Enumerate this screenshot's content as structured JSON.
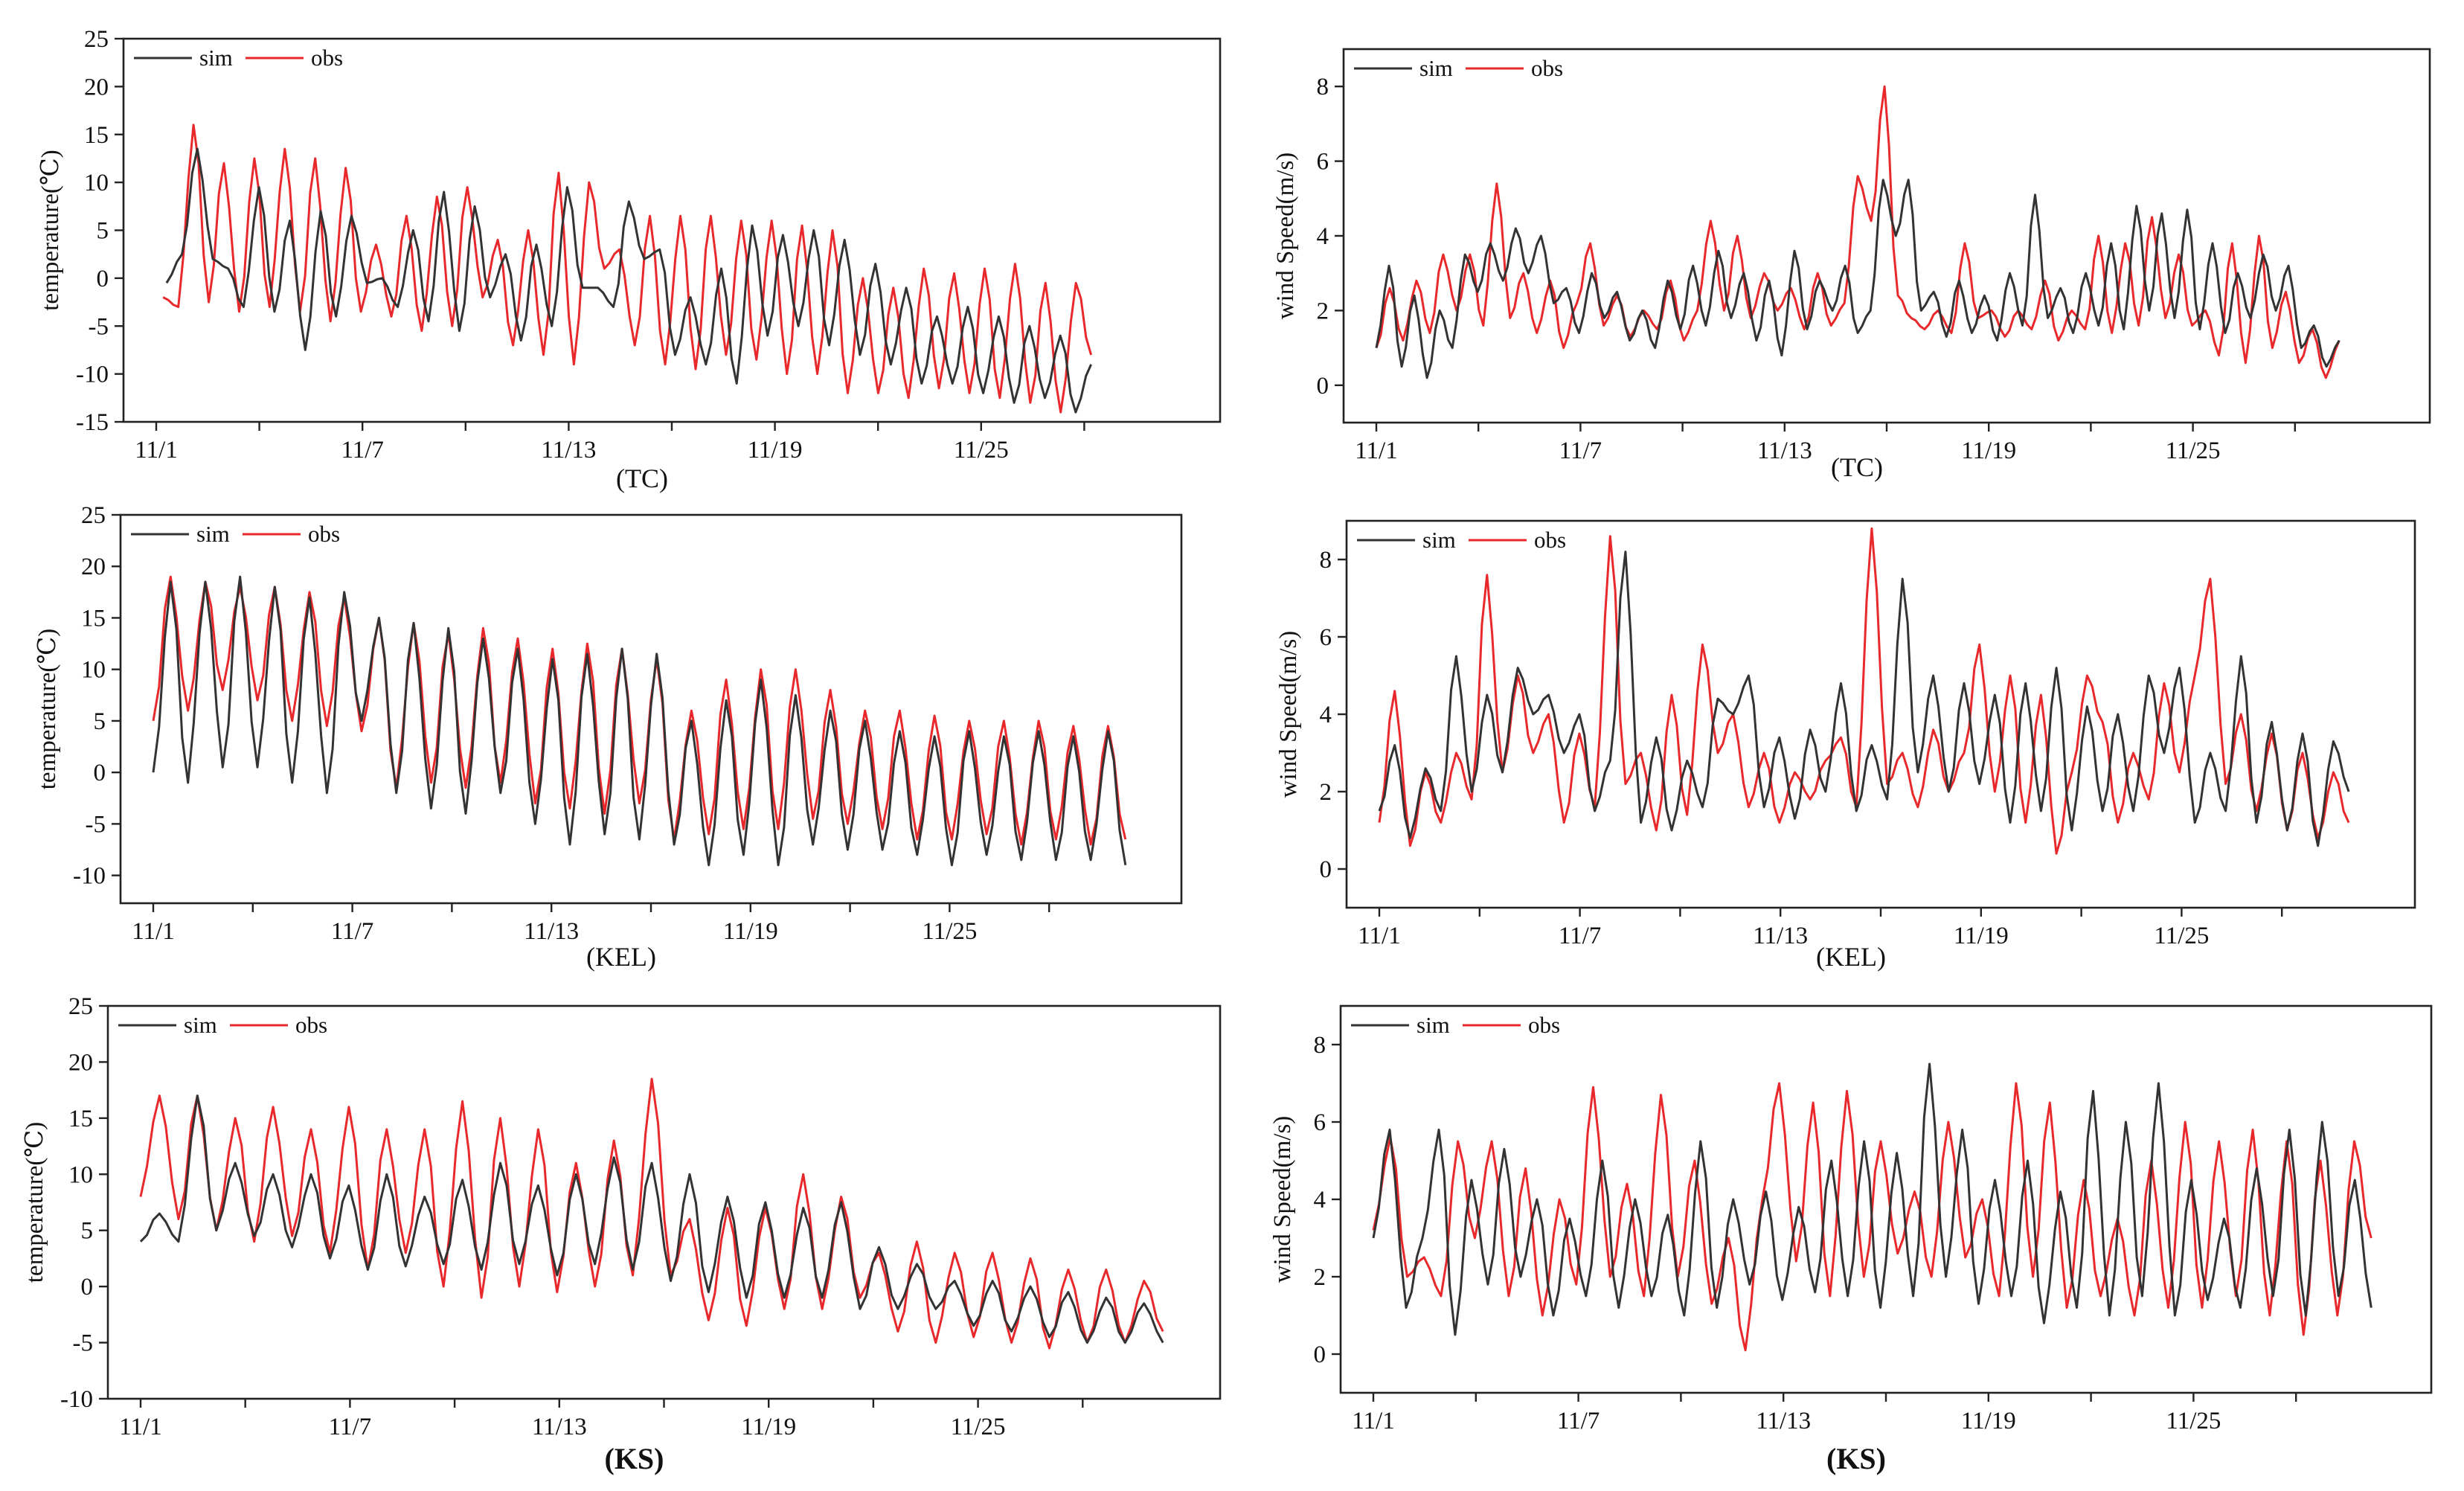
{
  "colors": {
    "sim": "#333333",
    "obs": "#e8282b"
  },
  "legend": {
    "sim": "sim",
    "obs": "obs"
  },
  "chart_data": [
    {
      "type": "line",
      "id": "temp-tc",
      "caption": "(TC)",
      "ylabel": "temperature(℃)",
      "ylim": [
        -15,
        25
      ],
      "yticks": [
        -15,
        -10,
        -5,
        0,
        5,
        10,
        15,
        20,
        25
      ],
      "xlim": [
        0,
        30
      ],
      "xtick_values": [
        0,
        6,
        12,
        18,
        24
      ],
      "xtick_labels": [
        "11/1",
        "11/7",
        "11/13",
        "11/19",
        "11/25"
      ],
      "data_end": 27.2,
      "series": [
        {
          "name": "sim",
          "key": "sim",
          "start": 0.3,
          "keys": [
            -0.5,
            2.5,
            13.5,
            2.0,
            1.0,
            -3.0,
            9.5,
            -3.5,
            6.0,
            -7.5,
            7.0,
            -4.0,
            6.5,
            -0.5,
            0.0,
            -3.0,
            5.0,
            -4.5,
            9.0,
            -5.5,
            7.5,
            -2.0,
            2.5,
            -6.5,
            3.5,
            -5.0,
            9.5,
            -1.0,
            -1.0,
            -3.0,
            8.0,
            2.0,
            3.0,
            -8.0,
            -2.0,
            -9.0,
            1.0,
            -11.0,
            5.5,
            -6.0,
            4.5,
            -5.0,
            5.0,
            -7.0,
            4.0,
            -8.0,
            1.5,
            -9.0,
            -1.0,
            -11.0,
            -4.0,
            -11.0,
            -3.0,
            -12.0,
            -4.0,
            -13.0,
            -5.0,
            -12.5,
            -6.0,
            -14.0,
            -9.0
          ]
        },
        {
          "name": "obs",
          "key": "obs",
          "start": 0.2,
          "keys": [
            -2.0,
            -3.0,
            16.0,
            -2.5,
            12.0,
            -3.5,
            12.5,
            -3.0,
            13.5,
            -3.5,
            12.5,
            -4.5,
            11.5,
            -3.5,
            3.5,
            -4.0,
            6.5,
            -5.5,
            8.5,
            -5.0,
            9.5,
            -2.0,
            4.0,
            -7.0,
            5.0,
            -8.0,
            11.0,
            -9.0,
            10.0,
            1.0,
            3.0,
            -7.0,
            6.5,
            -9.0,
            6.5,
            -9.5,
            6.5,
            -8.0,
            6.0,
            -8.5,
            6.0,
            -10.0,
            5.5,
            -10.0,
            5.0,
            -12.0,
            0.0,
            -12.0,
            -1.0,
            -12.5,
            1.0,
            -11.5,
            0.5,
            -12.0,
            1.0,
            -12.5,
            1.5,
            -13.0,
            -0.5,
            -14.0,
            -0.5,
            -8.0
          ]
        }
      ]
    },
    {
      "type": "line",
      "id": "wind-tc",
      "caption": "(TC)",
      "ylabel": "wind Speed(m/s)",
      "ylim": [
        -1,
        9
      ],
      "yticks": [
        0,
        2,
        4,
        6,
        8
      ],
      "xlim": [
        0,
        30
      ],
      "xtick_values": [
        0,
        6,
        12,
        18,
        24
      ],
      "xtick_labels": [
        "11/1",
        "11/7",
        "11/13",
        "11/19",
        "11/25"
      ],
      "data_end": 28.3,
      "series": [
        {
          "name": "sim",
          "key": "sim",
          "start": 0.0,
          "keys": [
            1.0,
            3.2,
            0.5,
            2.4,
            0.2,
            2.0,
            1.0,
            3.5,
            2.5,
            3.8,
            2.8,
            4.2,
            3.0,
            4.0,
            2.2,
            2.6,
            1.4,
            3.0,
            1.8,
            2.5,
            1.2,
            2.0,
            1.0,
            2.8,
            1.5,
            3.2,
            1.6,
            3.6,
            1.8,
            3.0,
            1.2,
            2.8,
            0.8,
            3.6,
            1.5,
            2.8,
            2.0,
            3.2,
            1.4,
            2.0,
            5.5,
            4.0,
            5.5,
            2.0,
            2.5,
            1.3,
            2.8,
            1.4,
            2.4,
            1.2,
            3.0,
            1.6,
            5.1,
            1.8,
            2.6,
            1.4,
            3.0,
            1.6,
            3.8,
            1.5,
            4.8,
            2.0,
            4.6,
            1.8,
            4.7,
            1.5,
            3.8,
            1.4,
            3.0,
            1.8,
            3.5,
            2.0,
            3.2,
            1.0,
            1.6,
            0.5,
            1.2
          ]
        },
        {
          "name": "obs",
          "key": "obs",
          "start": 0.0,
          "keys": [
            1.0,
            2.6,
            1.2,
            2.8,
            1.4,
            3.5,
            2.0,
            3.5,
            1.6,
            5.4,
            1.8,
            3.0,
            1.4,
            2.8,
            1.0,
            2.2,
            3.8,
            1.6,
            2.4,
            1.3,
            2.0,
            1.5,
            2.8,
            1.2,
            2.0,
            4.4,
            2.0,
            4.0,
            1.8,
            3.0,
            2.0,
            2.6,
            1.5,
            3.0,
            1.6,
            2.2,
            5.6,
            4.4,
            8.0,
            2.4,
            1.8,
            1.5,
            2.0,
            1.4,
            3.8,
            1.8,
            2.0,
            1.3,
            2.0,
            1.5,
            2.8,
            1.2,
            2.0,
            1.5,
            4.0,
            1.4,
            3.8,
            1.6,
            4.5,
            1.8,
            3.5,
            1.6,
            2.0,
            0.8,
            3.8,
            0.6,
            4.0,
            1.0,
            2.5,
            0.6,
            1.5,
            0.2,
            1.2
          ]
        }
      ]
    },
    {
      "type": "line",
      "id": "temp-kel",
      "caption": "(KEL)",
      "ylabel": "temperature(℃)",
      "ylim": [
        -12.7,
        25
      ],
      "yticks": [
        -10,
        -5,
        0,
        5,
        10,
        15,
        20,
        25
      ],
      "xlim": [
        0,
        30
      ],
      "xtick_values": [
        0,
        6,
        12,
        18,
        24
      ],
      "xtick_labels": [
        "11/1",
        "11/7",
        "11/13",
        "11/19",
        "11/25"
      ],
      "data_end": 29.3,
      "series": [
        {
          "name": "sim",
          "key": "sim",
          "start": 0.0,
          "keys": [
            0.0,
            18.5,
            -1.0,
            18.5,
            0.5,
            19.0,
            0.5,
            18.0,
            -1.0,
            17.0,
            -2.0,
            17.5,
            5.0,
            15.0,
            -2.0,
            14.5,
            -3.5,
            14.0,
            -4.0,
            13.0,
            -2.0,
            12.0,
            -5.0,
            11.0,
            -7.0,
            11.5,
            -6.0,
            12.0,
            -6.5,
            11.5,
            -7.0,
            5.0,
            -9.0,
            7.0,
            -8.0,
            9.0,
            -9.0,
            7.5,
            -7.0,
            6.0,
            -7.5,
            5.0,
            -7.5,
            4.0,
            -8.0,
            3.5,
            -9.0,
            4.0,
            -8.0,
            3.5,
            -8.5,
            4.0,
            -8.5,
            3.5,
            -8.5,
            4.0,
            -9.0
          ]
        },
        {
          "name": "obs",
          "key": "obs",
          "start": 0.0,
          "keys": [
            5.0,
            19.0,
            6.0,
            18.5,
            8.0,
            18.0,
            7.0,
            18.0,
            5.0,
            17.5,
            4.5,
            17.0,
            4.0,
            15.0,
            -1.5,
            14.5,
            -1.0,
            13.5,
            -1.5,
            14.0,
            -1.0,
            13.0,
            -3.0,
            12.0,
            -3.5,
            12.5,
            -4.0,
            12.0,
            -3.0,
            11.0,
            -6.5,
            6.0,
            -6.0,
            9.0,
            -5.5,
            10.0,
            -5.5,
            10.0,
            -4.5,
            8.0,
            -5.0,
            6.0,
            -5.5,
            6.0,
            -6.5,
            5.5,
            -6.5,
            5.0,
            -6.0,
            5.0,
            -7.0,
            5.0,
            -6.5,
            4.5,
            -7.0,
            4.5,
            -6.5
          ]
        }
      ]
    },
    {
      "type": "line",
      "id": "wind-kel",
      "caption": "(KEL)",
      "ylabel": "wind Speed(m/s)",
      "ylim": [
        -1,
        9
      ],
      "yticks": [
        0,
        2,
        4,
        6,
        8
      ],
      "xlim": [
        0,
        30
      ],
      "xtick_values": [
        0,
        6,
        12,
        18,
        24
      ],
      "xtick_labels": [
        "11/1",
        "11/7",
        "11/13",
        "11/19",
        "11/25"
      ],
      "data_end": 29.0,
      "series": [
        {
          "name": "sim",
          "key": "sim",
          "start": 0.0,
          "keys": [
            1.5,
            3.2,
            0.8,
            2.6,
            1.5,
            5.5,
            2.0,
            4.5,
            2.5,
            5.2,
            4.0,
            4.5,
            3.0,
            4.0,
            1.5,
            2.8,
            8.2,
            1.2,
            3.4,
            1.0,
            2.8,
            1.6,
            4.4,
            4.0,
            5.0,
            1.6,
            3.4,
            1.3,
            3.6,
            2.0,
            4.8,
            1.5,
            3.2,
            1.8,
            7.5,
            2.5,
            5.0,
            2.0,
            4.8,
            2.2,
            4.5,
            1.2,
            4.8,
            1.5,
            5.2,
            1.0,
            4.2,
            1.5,
            4.0,
            1.5,
            5.0,
            3.0,
            5.2,
            1.2,
            3.0,
            1.5,
            5.5,
            1.2,
            3.8,
            1.0,
            3.5,
            0.6,
            3.3,
            2.0
          ]
        },
        {
          "name": "obs",
          "key": "obs",
          "start": 0.0,
          "keys": [
            1.2,
            4.6,
            0.6,
            2.5,
            1.2,
            3.0,
            1.8,
            7.6,
            2.5,
            5.0,
            3.0,
            4.0,
            1.2,
            3.5,
            1.6,
            8.6,
            2.2,
            3.0,
            1.0,
            4.5,
            1.4,
            5.8,
            3.0,
            4.0,
            1.6,
            3.0,
            1.2,
            2.5,
            1.8,
            2.8,
            3.4,
            1.6,
            8.8,
            2.2,
            3.0,
            1.6,
            3.6,
            2.0,
            3.0,
            5.8,
            2.0,
            5.0,
            1.2,
            4.5,
            0.4,
            2.5,
            5.0,
            3.8,
            1.2,
            3.0,
            1.8,
            4.8,
            2.5,
            5.0,
            7.5,
            2.2,
            4.0,
            1.5,
            3.5,
            1.0,
            3.0,
            0.8,
            2.5,
            1.2
          ]
        }
      ]
    },
    {
      "type": "line",
      "id": "temp-ks",
      "caption": "(KS)",
      "ylabel": "temperature(℃)",
      "ylim": [
        -10,
        25
      ],
      "yticks": [
        -10,
        -5,
        0,
        5,
        10,
        15,
        20,
        25
      ],
      "xlim": [
        0,
        30
      ],
      "xtick_values": [
        0,
        6,
        12,
        18,
        24
      ],
      "xtick_labels": [
        "11/1",
        "11/7",
        "11/13",
        "11/19",
        "11/25"
      ],
      "data_end": 29.3,
      "series": [
        {
          "name": "sim",
          "key": "sim",
          "start": 0.0,
          "keys": [
            4.0,
            6.5,
            4.0,
            17.0,
            5.0,
            11.0,
            4.5,
            10.0,
            3.5,
            10.0,
            2.5,
            9.0,
            1.5,
            10.0,
            1.8,
            8.0,
            2.0,
            9.5,
            1.5,
            11.0,
            2.0,
            9.0,
            1.0,
            10.0,
            2.0,
            11.5,
            1.5,
            11.0,
            0.5,
            10.0,
            -0.5,
            8.0,
            -1.0,
            7.5,
            -1.0,
            7.0,
            -1.0,
            7.5,
            -2.0,
            3.5,
            -2.0,
            2.0,
            -2.0,
            0.5,
            -3.5,
            0.5,
            -4.0,
            0.0,
            -4.5,
            -0.5,
            -5.0,
            -1.0,
            -5.0,
            -1.5,
            -5.0
          ]
        },
        {
          "name": "obs",
          "key": "obs",
          "start": 0.0,
          "keys": [
            8.0,
            17.0,
            6.0,
            17.0,
            5.0,
            15.0,
            4.0,
            16.0,
            4.5,
            14.0,
            3.0,
            16.0,
            1.5,
            14.0,
            3.0,
            14.0,
            0.0,
            16.5,
            -1.0,
            15.0,
            0.0,
            14.0,
            -0.5,
            11.0,
            0.0,
            13.0,
            1.0,
            18.5,
            1.0,
            6.0,
            -3.0,
            7.0,
            -3.5,
            7.0,
            -2.0,
            10.0,
            -2.0,
            8.0,
            -1.0,
            3.0,
            -4.0,
            4.0,
            -5.0,
            3.0,
            -4.5,
            3.0,
            -5.0,
            2.5,
            -5.5,
            1.5,
            -5.0,
            1.5,
            -5.0,
            0.5,
            -4.0
          ]
        }
      ]
    },
    {
      "type": "line",
      "id": "wind-ks",
      "caption": "(KS)",
      "ylabel": "wind Speed(m/s)",
      "ylim": [
        -1,
        9
      ],
      "yticks": [
        0,
        2,
        4,
        6,
        8
      ],
      "xlim": [
        0,
        30
      ],
      "xtick_values": [
        0,
        6,
        12,
        18,
        24
      ],
      "xtick_labels": [
        "11/1",
        "11/7",
        "11/13",
        "11/19",
        "11/25"
      ],
      "data_end": 29.2,
      "series": [
        {
          "name": "sim",
          "key": "sim",
          "start": 0.0,
          "keys": [
            3.0,
            5.8,
            1.2,
            3.0,
            5.8,
            0.5,
            4.5,
            1.8,
            5.3,
            2.0,
            4.0,
            1.0,
            3.5,
            1.5,
            5.0,
            1.2,
            4.0,
            1.5,
            3.6,
            1.0,
            5.5,
            1.2,
            4.0,
            1.8,
            4.2,
            1.4,
            3.8,
            1.6,
            5.0,
            1.5,
            5.5,
            1.2,
            5.2,
            1.5,
            7.5,
            2.0,
            5.8,
            1.3,
            4.5,
            1.5,
            5.0,
            0.8,
            4.2,
            1.2,
            6.8,
            1.0,
            6.0,
            1.5,
            7.0,
            1.0,
            4.5,
            1.4,
            3.5,
            1.2,
            4.8,
            1.5,
            5.8,
            1.0,
            6.0,
            1.5,
            4.5,
            1.2
          ]
        },
        {
          "name": "obs",
          "key": "obs",
          "start": 0.0,
          "keys": [
            3.2,
            5.6,
            2.0,
            2.5,
            1.5,
            5.5,
            3.0,
            5.5,
            1.5,
            4.8,
            1.0,
            4.0,
            1.8,
            6.9,
            2.0,
            4.4,
            1.5,
            6.7,
            2.0,
            5.0,
            1.3,
            3.0,
            0.1,
            4.0,
            7.0,
            2.4,
            6.5,
            1.5,
            6.8,
            2.0,
            5.5,
            2.6,
            4.2,
            2.0,
            6.0,
            2.5,
            4.0,
            1.5,
            7.0,
            2.0,
            6.5,
            1.2,
            4.5,
            1.5,
            3.5,
            1.0,
            5.0,
            1.2,
            6.0,
            1.2,
            5.5,
            1.5,
            5.8,
            1.0,
            5.5,
            0.5,
            5.0,
            1.0,
            5.5,
            3.0
          ]
        }
      ]
    }
  ]
}
